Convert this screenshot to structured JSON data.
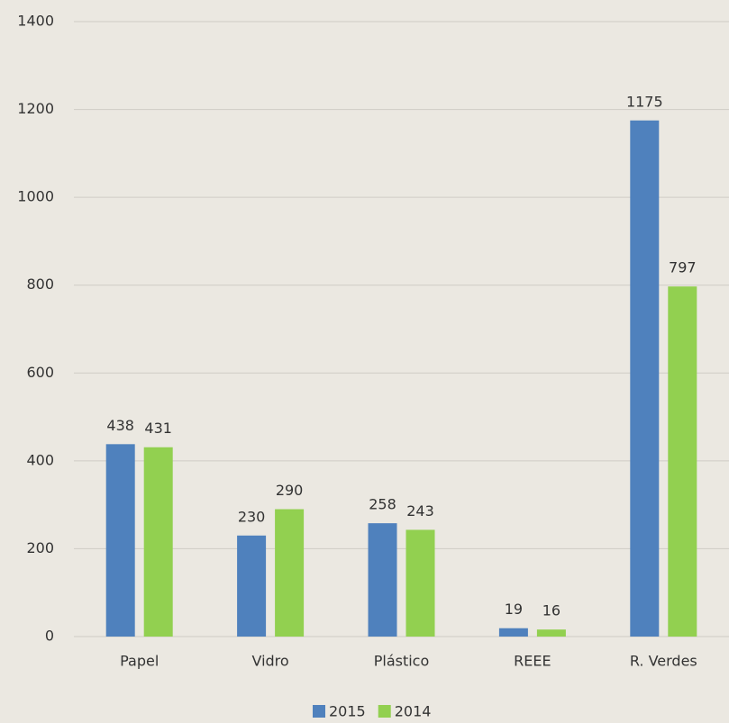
{
  "chart_data": {
    "type": "bar",
    "categories": [
      "Papel",
      "Vidro",
      "Plástico",
      "REEE",
      "R. Verdes"
    ],
    "series": [
      {
        "name": "2015",
        "color": "#4f81bd",
        "values": [
          438,
          230,
          258,
          19,
          1175
        ]
      },
      {
        "name": "2014",
        "color": "#92d050",
        "values": [
          431,
          290,
          243,
          16,
          797
        ]
      }
    ],
    "ylim": [
      0,
      1400
    ],
    "yticks": [
      0,
      200,
      400,
      600,
      800,
      1000,
      1200,
      1400
    ],
    "grid": true,
    "legend": "bottom"
  }
}
